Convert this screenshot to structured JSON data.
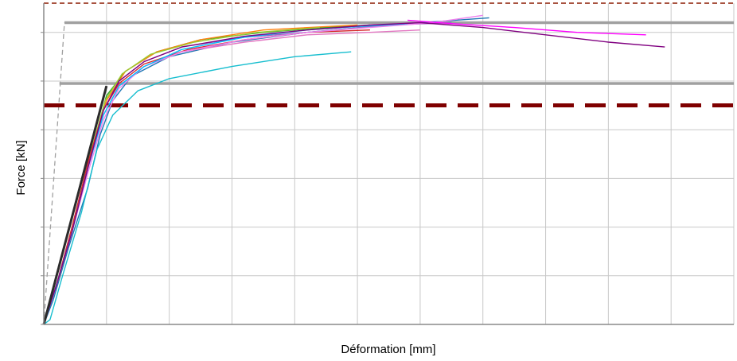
{
  "chart_data": {
    "type": "line",
    "title": "",
    "xlabel": "Déformation [mm]",
    "ylabel": "Force [kN]",
    "xlim": [
      0,
      11
    ],
    "ylim": [
      0,
      6.6
    ],
    "grid": true,
    "legend": "none",
    "x_tick_step": 1,
    "y_tick_step": 1,
    "series": [
      {
        "color": "#1f77b4",
        "values": [
          [
            0,
            0
          ],
          [
            0.15,
            0.5
          ],
          [
            0.4,
            1.6
          ],
          [
            0.7,
            2.8
          ],
          [
            0.9,
            3.9
          ],
          [
            1.1,
            4.6
          ],
          [
            1.4,
            5.1
          ],
          [
            2,
            5.5
          ],
          [
            3,
            5.8
          ],
          [
            4.2,
            6.0
          ],
          [
            5.5,
            6.15
          ],
          [
            7.1,
            6.3
          ]
        ]
      },
      {
        "color": "#17becf",
        "values": [
          [
            0,
            0
          ],
          [
            0.1,
            0.1
          ],
          [
            0.3,
            1.0
          ],
          [
            0.6,
            2.3
          ],
          [
            0.85,
            3.6
          ],
          [
            1.1,
            4.3
          ],
          [
            1.5,
            4.8
          ],
          [
            2,
            5.05
          ],
          [
            3,
            5.3
          ],
          [
            4,
            5.5
          ],
          [
            4.9,
            5.6
          ]
        ]
      },
      {
        "color": "#2ca02c",
        "values": [
          [
            0,
            0
          ],
          [
            0.25,
            1.0
          ],
          [
            0.5,
            2.2
          ],
          [
            0.75,
            3.5
          ],
          [
            1.0,
            4.7
          ],
          [
            1.3,
            5.2
          ],
          [
            1.8,
            5.6
          ],
          [
            2.5,
            5.85
          ],
          [
            3.5,
            6.0
          ],
          [
            4.5,
            6.1
          ],
          [
            5.2,
            6.15
          ]
        ]
      },
      {
        "color": "#ff7f0e",
        "values": [
          [
            0,
            0
          ],
          [
            0.25,
            1.0
          ],
          [
            0.5,
            2.2
          ],
          [
            0.75,
            3.5
          ],
          [
            1.0,
            4.6
          ],
          [
            1.3,
            5.2
          ],
          [
            1.8,
            5.6
          ],
          [
            2.5,
            5.85
          ],
          [
            3.5,
            6.05
          ],
          [
            4.5,
            6.12
          ],
          [
            5.0,
            6.15
          ]
        ]
      },
      {
        "color": "#9acd32",
        "values": [
          [
            0,
            0
          ],
          [
            0.22,
            0.9
          ],
          [
            0.48,
            2.1
          ],
          [
            0.72,
            3.4
          ],
          [
            0.98,
            4.6
          ],
          [
            1.25,
            5.15
          ],
          [
            1.7,
            5.55
          ],
          [
            2.4,
            5.8
          ],
          [
            3.4,
            6.0
          ],
          [
            4.4,
            6.1
          ]
        ]
      },
      {
        "color": "#d62728",
        "values": [
          [
            0,
            0
          ],
          [
            0.2,
            0.8
          ],
          [
            0.45,
            2.0
          ],
          [
            0.7,
            3.3
          ],
          [
            0.95,
            4.4
          ],
          [
            1.2,
            4.95
          ],
          [
            1.6,
            5.35
          ],
          [
            2.3,
            5.65
          ],
          [
            3.2,
            5.85
          ],
          [
            4.2,
            6.0
          ],
          [
            5.2,
            6.05
          ]
        ]
      },
      {
        "color": "#e377c2",
        "values": [
          [
            0,
            0
          ],
          [
            0.2,
            0.8
          ],
          [
            0.45,
            1.9
          ],
          [
            0.7,
            3.2
          ],
          [
            0.95,
            4.3
          ],
          [
            1.2,
            4.9
          ],
          [
            1.6,
            5.3
          ],
          [
            2.2,
            5.6
          ],
          [
            3.2,
            5.8
          ],
          [
            4.2,
            5.95
          ],
          [
            5.2,
            6.0
          ],
          [
            6.0,
            6.05
          ]
        ]
      },
      {
        "color": "#9467bd",
        "values": [
          [
            0,
            0
          ],
          [
            0.2,
            0.8
          ],
          [
            0.45,
            1.9
          ],
          [
            0.7,
            3.2
          ],
          [
            0.95,
            4.4
          ],
          [
            1.2,
            5.0
          ],
          [
            1.6,
            5.4
          ],
          [
            2.2,
            5.7
          ],
          [
            3.2,
            5.9
          ],
          [
            4.2,
            6.0
          ],
          [
            5.5,
            6.15
          ],
          [
            6.5,
            6.2
          ]
        ]
      },
      {
        "color": "#ee82ee",
        "values": [
          [
            0,
            0
          ],
          [
            0.2,
            0.8
          ],
          [
            0.45,
            1.9
          ],
          [
            0.7,
            3.1
          ],
          [
            0.95,
            4.2
          ],
          [
            1.2,
            4.85
          ],
          [
            1.6,
            5.3
          ],
          [
            2.2,
            5.6
          ],
          [
            3.2,
            5.85
          ],
          [
            4.2,
            6.0
          ],
          [
            5.2,
            6.1
          ],
          [
            6.2,
            6.2
          ],
          [
            7.0,
            6.35
          ]
        ]
      },
      {
        "color": "#00bfff",
        "values": [
          [
            0,
            0
          ],
          [
            0.2,
            0.8
          ],
          [
            0.45,
            1.9
          ],
          [
            0.7,
            3.2
          ],
          [
            0.95,
            4.3
          ],
          [
            1.2,
            4.9
          ],
          [
            1.6,
            5.3
          ],
          [
            2.2,
            5.65
          ],
          [
            3.2,
            5.9
          ],
          [
            4.2,
            6.05
          ],
          [
            5.0,
            6.12
          ],
          [
            5.8,
            6.18
          ]
        ]
      },
      {
        "color": "#ff00ff",
        "values": [
          [
            5.8,
            6.25
          ],
          [
            6.5,
            6.18
          ],
          [
            7.5,
            6.1
          ],
          [
            8.5,
            6.0
          ],
          [
            9.6,
            5.95
          ]
        ]
      },
      {
        "color": "#800080",
        "values": [
          [
            0,
            0
          ],
          [
            0.2,
            0.8
          ],
          [
            0.45,
            1.9
          ],
          [
            0.7,
            3.2
          ],
          [
            0.95,
            4.4
          ],
          [
            1.2,
            5.0
          ],
          [
            1.6,
            5.4
          ],
          [
            2.2,
            5.7
          ],
          [
            3.2,
            5.92
          ],
          [
            4.2,
            6.05
          ],
          [
            5.2,
            6.15
          ],
          [
            6.0,
            6.2
          ],
          [
            7.0,
            6.1
          ],
          [
            8.0,
            5.95
          ],
          [
            9.0,
            5.8
          ],
          [
            9.9,
            5.7
          ]
        ]
      }
    ],
    "reference_lines": [
      {
        "kind": "elastic-slope",
        "color": "#2b2b2b",
        "dash": false,
        "values": [
          [
            0,
            0
          ],
          [
            1.0,
            4.9
          ]
        ]
      },
      {
        "kind": "elastic-slope",
        "color": "#a0a0a0",
        "dash": true,
        "values": [
          [
            0,
            0
          ],
          [
            0.33,
            6.2
          ]
        ]
      },
      {
        "kind": "horizontal",
        "color": "#a0a0a0",
        "dash": false,
        "values": [
          [
            0.33,
            6.2
          ],
          [
            11,
            6.2
          ]
        ]
      },
      {
        "kind": "horizontal",
        "color": "#a0a0a0",
        "dash": false,
        "values": [
          [
            0.25,
            4.95
          ],
          [
            11,
            4.95
          ]
        ]
      },
      {
        "kind": "horizontal",
        "color": "#8b1a00",
        "dash": true,
        "values": [
          [
            0,
            6.6
          ],
          [
            11,
            6.6
          ]
        ]
      },
      {
        "kind": "horizontal",
        "color": "#7f0000",
        "dash": true,
        "values": [
          [
            0,
            4.5
          ],
          [
            11,
            4.5
          ]
        ]
      }
    ]
  }
}
